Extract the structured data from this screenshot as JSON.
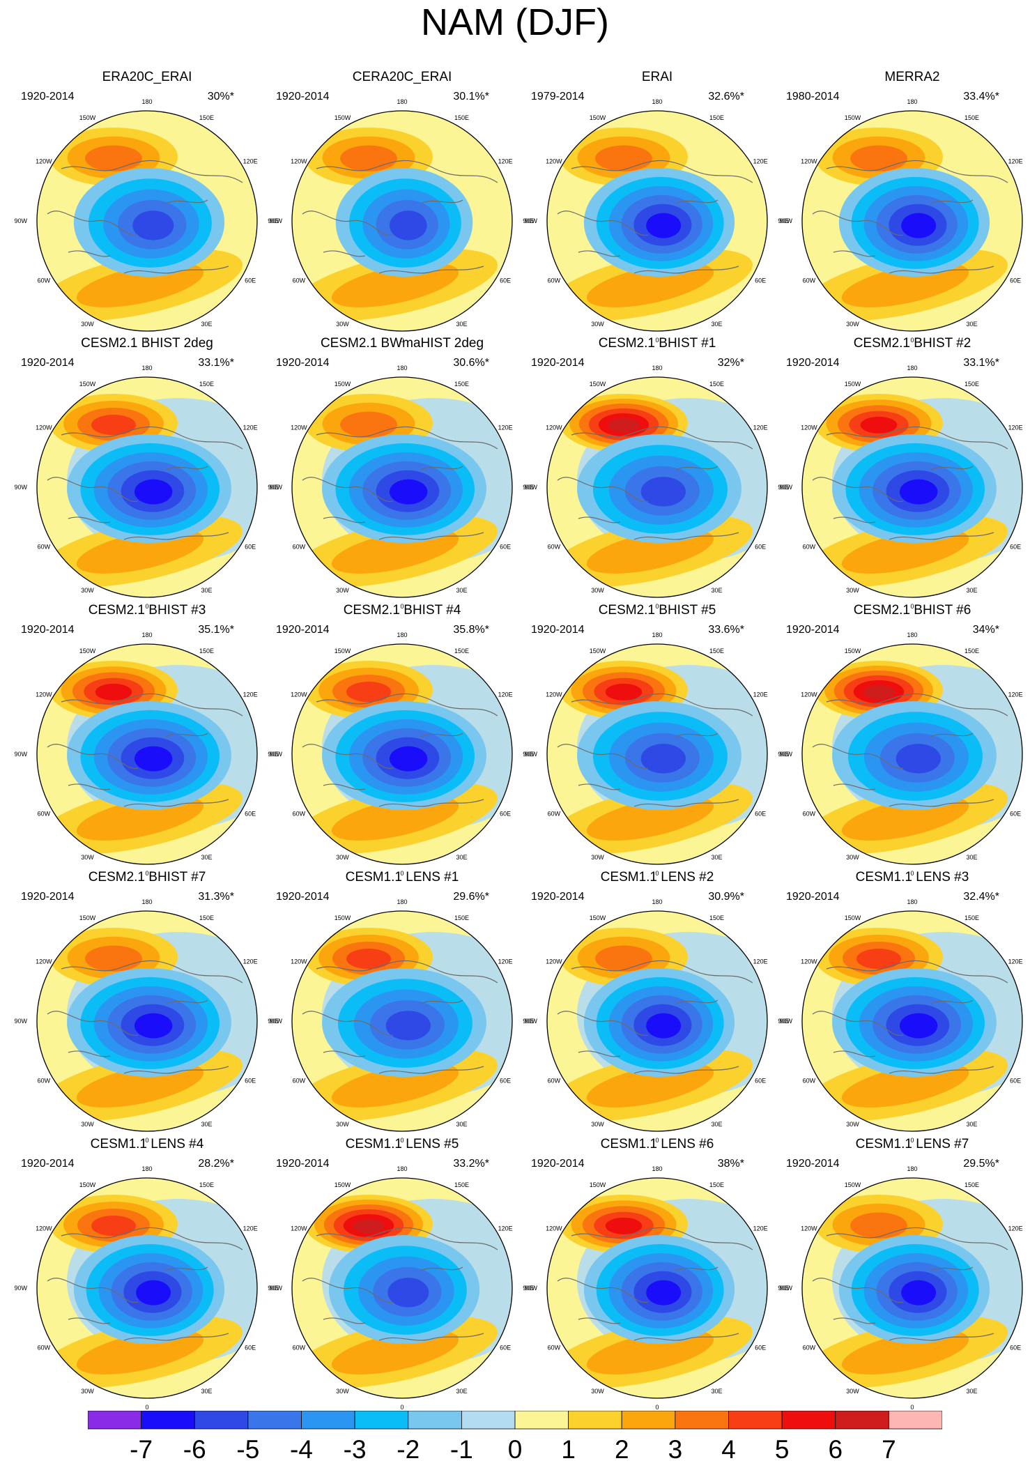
{
  "title": "NAM (DJF)",
  "chart_data": {
    "type": "heatmap",
    "title": "NAM (DJF)",
    "projection": "north polar stereographic",
    "lon_labels": [
      "180",
      "150W",
      "150E",
      "120W",
      "120E",
      "90W",
      "90E",
      "60W",
      "60E",
      "30W",
      "30E",
      "0"
    ],
    "colorbar": {
      "ticks": [
        "-7",
        "-6",
        "-5",
        "-4",
        "-3",
        "-2",
        "-1",
        "0",
        "1",
        "2",
        "3",
        "4",
        "5",
        "6",
        "7"
      ],
      "colors": [
        "#8a2be8",
        "#1a0dfa",
        "#2f49e6",
        "#3a75ea",
        "#2a96f2",
        "#0bbdf7",
        "#79c6ee",
        "#b3dcf2",
        "#fbf596",
        "#fbd12d",
        "#fba60d",
        "#fa7510",
        "#f83e14",
        "#ef0e0e",
        "#cf1d1d",
        "#feb6b4"
      ]
    },
    "panels": [
      {
        "name": "ERA20C_ERAI",
        "period": "1920-2014",
        "variance": "30%*",
        "pos": 3,
        "neg": -5,
        "polar": 0.55
      },
      {
        "name": "CERA20C_ERAI",
        "period": "1920-2014",
        "variance": "30.1%*",
        "pos": 3,
        "neg": -5,
        "polar": 0.5
      },
      {
        "name": "ERAI",
        "period": "1979-2014",
        "variance": "32.6%*",
        "pos": 3,
        "neg": -6,
        "polar": 0.55
      },
      {
        "name": "MERRA2",
        "period": "1980-2014",
        "variance": "33.4%*",
        "pos": 3,
        "neg": -6,
        "polar": 0.55
      },
      {
        "name": "CESM2.1 BHIST 2deg",
        "period": "1920-2014",
        "variance": "33.1%*",
        "pos": 4,
        "neg": -6,
        "polar": 0.6
      },
      {
        "name": "CESM2.1 BWmaHIST 2deg",
        "period": "1920-2014",
        "variance": "30.6%*",
        "pos": 3,
        "neg": -6,
        "polar": 0.6
      },
      {
        "name": "CESM2.1 BHIST #1",
        "period": "1920-2014",
        "variance": "32%*",
        "pos": 6,
        "neg": -5,
        "polar": 0.6
      },
      {
        "name": "CESM2.1 BHIST #2",
        "period": "1920-2014",
        "variance": "33.1%*",
        "pos": 5,
        "neg": -6,
        "polar": 0.6
      },
      {
        "name": "CESM2.1 BHIST #3",
        "period": "1920-2014",
        "variance": "35.1%*",
        "pos": 5,
        "neg": -6,
        "polar": 0.6
      },
      {
        "name": "CESM2.1 BHIST #4",
        "period": "1920-2014",
        "variance": "35.8%*",
        "pos": 4,
        "neg": -6,
        "polar": 0.6
      },
      {
        "name": "CESM2.1 BHIST #5",
        "period": "1920-2014",
        "variance": "33.6%*",
        "pos": 5,
        "neg": -5,
        "polar": 0.6
      },
      {
        "name": "CESM2.1 BHIST #6",
        "period": "1920-2014",
        "variance": "34%*",
        "pos": 6,
        "neg": -5,
        "polar": 0.6
      },
      {
        "name": "CESM2.1 BHIST #7",
        "period": "1920-2014",
        "variance": "31.3%*",
        "pos": 3,
        "neg": -6,
        "polar": 0.6
      },
      {
        "name": "CESM1.1 LENS #1",
        "period": "1920-2014",
        "variance": "29.6%*",
        "pos": 4,
        "neg": -5,
        "polar": 0.6
      },
      {
        "name": "CESM1.1 LENS #2",
        "period": "1920-2014",
        "variance": "30.9%*",
        "pos": 3,
        "neg": -6,
        "polar": 0.55
      },
      {
        "name": "CESM1.1 LENS #3",
        "period": "1920-2014",
        "variance": "32.4%*",
        "pos": 4,
        "neg": -6,
        "polar": 0.6
      },
      {
        "name": "CESM1.1 LENS #4",
        "period": "1920-2014",
        "variance": "28.2%*",
        "pos": 4,
        "neg": -6,
        "polar": 0.55
      },
      {
        "name": "CESM1.1 LENS #5",
        "period": "1920-2014",
        "variance": "33.2%*",
        "pos": 6,
        "neg": -5,
        "polar": 0.55
      },
      {
        "name": "CESM1.1 LENS #6",
        "period": "1920-2014",
        "variance": "38%*",
        "pos": 5,
        "neg": -6,
        "polar": 0.55
      },
      {
        "name": "CESM1.1 LENS #7",
        "period": "1920-2014",
        "variance": "29.5%*",
        "pos": 3,
        "neg": -6,
        "polar": 0.55
      }
    ]
  }
}
